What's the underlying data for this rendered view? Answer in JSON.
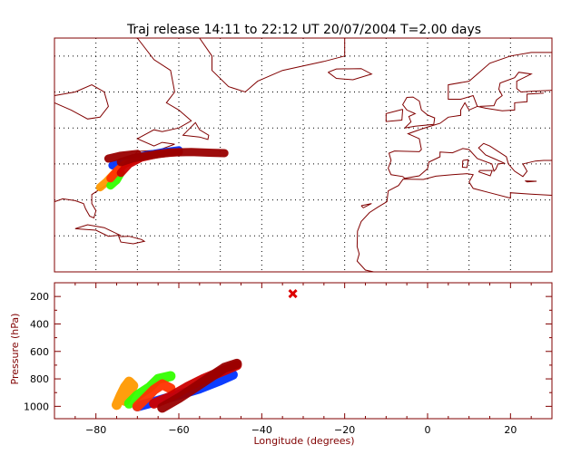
{
  "title": "Traj release 14:11 to 22:12 UT 20/07/2004    T=2.00 days",
  "colors": {
    "frame": "#800000",
    "coast": "#800000",
    "grid": "#000000",
    "series": [
      "#0033ff",
      "#ff9900",
      "#33ff00",
      "#ff3300",
      "#cc0000",
      "#990000"
    ],
    "marker": "#dd0000"
  },
  "chart_data": [
    {
      "type": "map",
      "grid": true,
      "xlim": [
        -90,
        30
      ],
      "ylim": [
        10,
        75
      ],
      "series": [
        {
          "color": "#0033ff",
          "path": [
            [
              -76,
              39.6
            ],
            [
              -72,
              41.2
            ],
            [
              -68,
              42.4
            ],
            [
              -64,
              43.2
            ],
            [
              -60,
              43.8
            ]
          ]
        },
        {
          "color": "#ff9900",
          "path": [
            [
              -79,
              33.5
            ],
            [
              -77.5,
              35
            ],
            [
              -76,
              36.8
            ],
            [
              -74.5,
              38.5
            ]
          ]
        },
        {
          "color": "#33ff00",
          "path": [
            [
              -76.5,
              34
            ],
            [
              -75,
              35.5
            ],
            [
              -74,
              37.5
            ]
          ]
        },
        {
          "color": "#ff3300",
          "path": [
            [
              -76.5,
              36
            ],
            [
              -75,
              38
            ],
            [
              -73,
              40
            ],
            [
              -70.5,
              41.5
            ]
          ]
        },
        {
          "color": "#cc0000",
          "path": [
            [
              -74,
              37.5
            ],
            [
              -72,
              40
            ],
            [
              -69,
              41.8
            ],
            [
              -65,
              42.8
            ],
            [
              -60,
              43.3
            ]
          ]
        },
        {
          "color": "#990000",
          "path": [
            [
              -74,
              40.5
            ],
            [
              -71,
              41.6
            ],
            [
              -67,
              42.4
            ],
            [
              -62,
              43.2
            ],
            [
              -57,
              43.3
            ],
            [
              -52,
              43.1
            ],
            [
              -49,
              43
            ]
          ]
        },
        {
          "color": "#990000",
          "path": [
            [
              -77,
              41.5
            ],
            [
              -74,
              42.3
            ],
            [
              -70,
              42.8
            ]
          ]
        }
      ]
    },
    {
      "type": "scatter",
      "xlabel": "Longitude  (degrees)",
      "ylabel": "Pressure  (hPa)",
      "xlim": [
        -90,
        30
      ],
      "ylim": [
        100,
        1090
      ],
      "y_inverted": true,
      "x_ticks": [
        -80,
        -60,
        -40,
        -20,
        0,
        20
      ],
      "y_ticks": [
        200,
        400,
        600,
        800,
        1000
      ],
      "series": [
        {
          "color": "#0033ff",
          "path": [
            [
              -70,
              1000
            ],
            [
              -65,
              960
            ],
            [
              -60,
              915
            ],
            [
              -55,
              870
            ],
            [
              -50,
              810
            ],
            [
              -47,
              770
            ]
          ]
        },
        {
          "color": "#ff9900",
          "path": [
            [
              -75,
              990
            ],
            [
              -74,
              920
            ],
            [
              -73,
              860
            ],
            [
              -72,
              820
            ],
            [
              -71,
              850
            ],
            [
              -73,
              960
            ]
          ]
        },
        {
          "color": "#33ff00",
          "path": [
            [
              -72,
              980
            ],
            [
              -70,
              920
            ],
            [
              -67,
              860
            ],
            [
              -65,
              800
            ],
            [
              -62,
              780
            ]
          ]
        },
        {
          "color": "#ff3300",
          "path": [
            [
              -70,
              1000
            ],
            [
              -68,
              940
            ],
            [
              -66,
              880
            ],
            [
              -64,
              840
            ],
            [
              -62,
              870
            ]
          ]
        },
        {
          "color": "#cc0000",
          "path": [
            [
              -66,
              980
            ],
            [
              -62,
              930
            ],
            [
              -58,
              860
            ],
            [
              -54,
              800
            ],
            [
              -50,
              750
            ],
            [
              -46,
              700
            ]
          ]
        },
        {
          "color": "#990000",
          "path": [
            [
              -64,
              1010
            ],
            [
              -60,
              940
            ],
            [
              -56,
              860
            ],
            [
              -52,
              780
            ],
            [
              -49,
              720
            ],
            [
              -46,
              690
            ]
          ]
        }
      ],
      "markers": [
        {
          "x": -32.5,
          "y": 180,
          "symbol": "x",
          "color": "#dd0000"
        }
      ]
    }
  ]
}
